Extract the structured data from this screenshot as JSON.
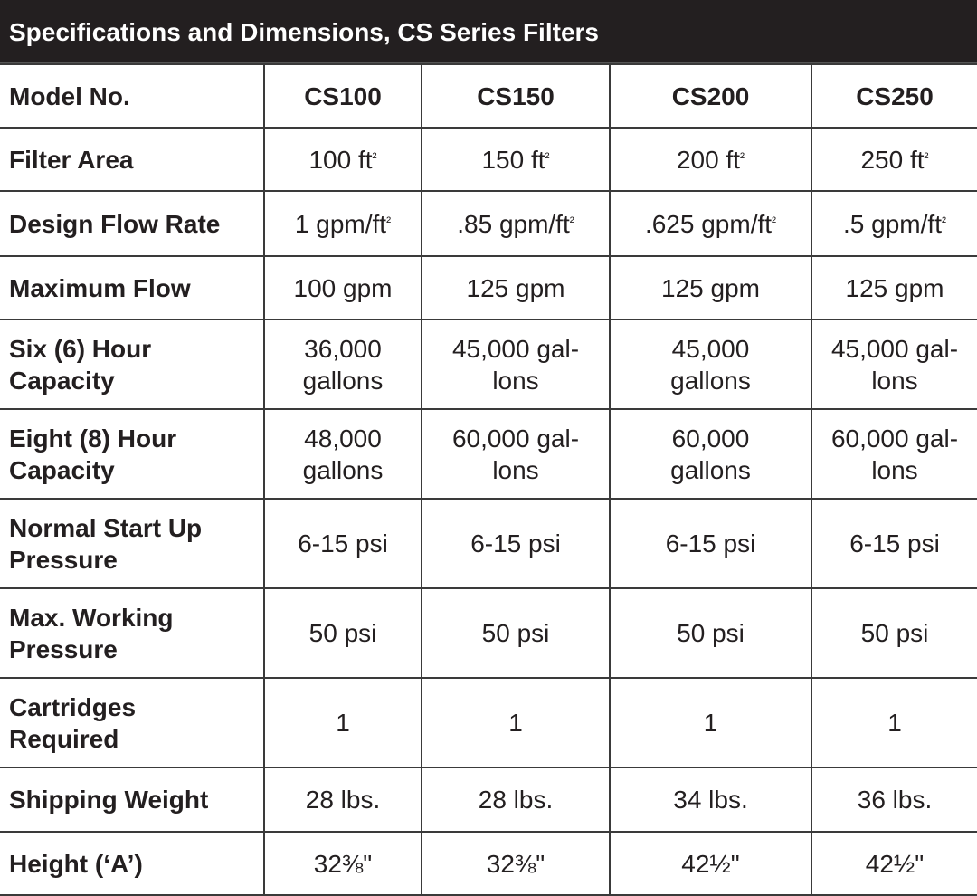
{
  "title": "Specifications and Dimensions, CS Series Filters",
  "rows": [
    {
      "label": "Model No.",
      "values": [
        "CS100",
        "CS150",
        "CS200",
        "CS250"
      ]
    },
    {
      "label": "Filter Area",
      "values": [
        "100 ft²",
        "150 ft²",
        "200 ft²",
        "250 ft²"
      ]
    },
    {
      "label": "Design Flow Rate",
      "values": [
        "1 gpm/ft²",
        ".85 gpm/ft²",
        ".625 gpm/ft²",
        ".5 gpm/ft²"
      ]
    },
    {
      "label": "Maximum Flow",
      "values": [
        "100 gpm",
        "125 gpm",
        "125 gpm",
        "125 gpm"
      ]
    },
    {
      "label": "Six (6) Hour Capacity",
      "values": [
        "36,000 gallons",
        "45,000 gal-lons",
        "45,000 gallons",
        "45,000 gal-lons"
      ]
    },
    {
      "label": "Eight (8) Hour Capacity",
      "values": [
        "48,000 gallons",
        "60,000 gal-lons",
        "60,000 gallons",
        "60,000 gal-lons"
      ]
    },
    {
      "label": "Normal Start Up Pressure",
      "values": [
        "6-15 psi",
        "6-15 psi",
        "6-15 psi",
        "6-15 psi"
      ]
    },
    {
      "label": "Max. Working Pressure",
      "values": [
        "50 psi",
        "50 psi",
        "50 psi",
        "50 psi"
      ]
    },
    {
      "label": "Cartridges Required",
      "values": [
        "1",
        "1",
        "1",
        "1"
      ]
    },
    {
      "label": "Shipping Weight",
      "values": [
        "28 lbs.",
        "28 lbs.",
        "34 lbs.",
        "36 lbs."
      ]
    },
    {
      "label": "Height (‘A’)",
      "values": [
        "32⅜\"",
        "32⅜\"",
        "42½\"",
        "42½\""
      ]
    }
  ],
  "colors": {
    "header_bg": "#231f20",
    "header_text": "#ffffff",
    "border": "#3a3a3a"
  }
}
